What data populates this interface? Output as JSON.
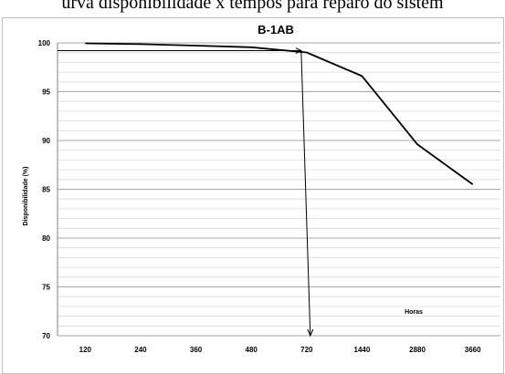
{
  "caption": "urva disponibilidade x tempos para reparo do sistem",
  "chart_data": {
    "type": "line",
    "title": "B-1AB",
    "xlabel": "Horas",
    "ylabel": "Disponibilidade (%)",
    "categories": [
      "120",
      "240",
      "360",
      "480",
      "720",
      "1440",
      "2880",
      "3660"
    ],
    "series": [
      {
        "values": [
          99.95,
          99.87,
          99.72,
          99.55,
          99.02,
          96.6,
          89.6,
          85.5
        ]
      }
    ],
    "ylim": [
      70,
      100
    ],
    "yticks": [
      70,
      75,
      80,
      85,
      90,
      95,
      100
    ],
    "minor_grid_step": 1,
    "grid": true,
    "reference": {
      "category": "720",
      "value": 99.2
    },
    "colors": {
      "line": "#000000",
      "major_grid": "#a6a6a6",
      "minor_grid": "#d9d9d9"
    }
  }
}
